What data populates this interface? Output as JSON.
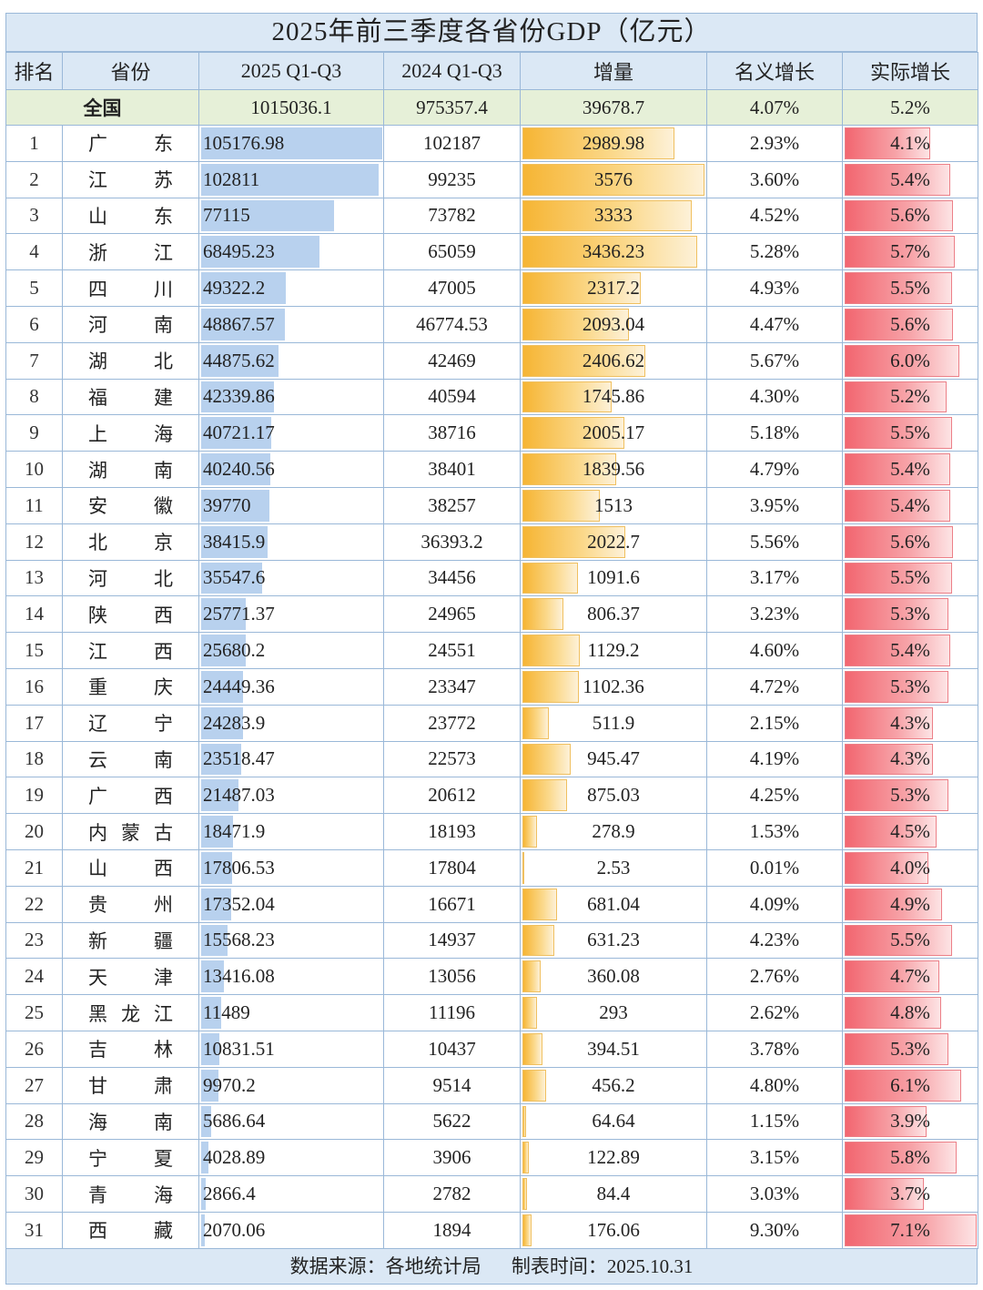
{
  "title": "2025年前三季度各省份GDP（亿元）",
  "columns": [
    "排名",
    "省份",
    "2025 Q1-Q3",
    "2024 Q1-Q3",
    "增量",
    "名义增长",
    "实际增长"
  ],
  "national": {
    "name": "全国",
    "gdp2025": "1015036.1",
    "gdp2024": "975357.4",
    "increase": "39678.7",
    "nominal": "4.07%",
    "real": "5.2%"
  },
  "rows": [
    {
      "rank": "1",
      "name": "广东",
      "gdp2025": "105176.98",
      "gdp2024": "102187",
      "increase": "2989.98",
      "nominal": "2.93%",
      "real": "4.1%"
    },
    {
      "rank": "2",
      "name": "江苏",
      "gdp2025": "102811",
      "gdp2024": "99235",
      "increase": "3576",
      "nominal": "3.60%",
      "real": "5.4%"
    },
    {
      "rank": "3",
      "name": "山东",
      "gdp2025": "77115",
      "gdp2024": "73782",
      "increase": "3333",
      "nominal": "4.52%",
      "real": "5.6%"
    },
    {
      "rank": "4",
      "name": "浙江",
      "gdp2025": "68495.23",
      "gdp2024": "65059",
      "increase": "3436.23",
      "nominal": "5.28%",
      "real": "5.7%"
    },
    {
      "rank": "5",
      "name": "四川",
      "gdp2025": "49322.2",
      "gdp2024": "47005",
      "increase": "2317.2",
      "nominal": "4.93%",
      "real": "5.5%"
    },
    {
      "rank": "6",
      "name": "河南",
      "gdp2025": "48867.57",
      "gdp2024": "46774.53",
      "increase": "2093.04",
      "nominal": "4.47%",
      "real": "5.6%"
    },
    {
      "rank": "7",
      "name": "湖北",
      "gdp2025": "44875.62",
      "gdp2024": "42469",
      "increase": "2406.62",
      "nominal": "5.67%",
      "real": "6.0%"
    },
    {
      "rank": "8",
      "name": "福建",
      "gdp2025": "42339.86",
      "gdp2024": "40594",
      "increase": "1745.86",
      "nominal": "4.30%",
      "real": "5.2%"
    },
    {
      "rank": "9",
      "name": "上海",
      "gdp2025": "40721.17",
      "gdp2024": "38716",
      "increase": "2005.17",
      "nominal": "5.18%",
      "real": "5.5%"
    },
    {
      "rank": "10",
      "name": "湖南",
      "gdp2025": "40240.56",
      "gdp2024": "38401",
      "increase": "1839.56",
      "nominal": "4.79%",
      "real": "5.4%"
    },
    {
      "rank": "11",
      "name": "安徽",
      "gdp2025": "39770",
      "gdp2024": "38257",
      "increase": "1513",
      "nominal": "3.95%",
      "real": "5.4%"
    },
    {
      "rank": "12",
      "name": "北京",
      "gdp2025": "38415.9",
      "gdp2024": "36393.2",
      "increase": "2022.7",
      "nominal": "5.56%",
      "real": "5.6%"
    },
    {
      "rank": "13",
      "name": "河北",
      "gdp2025": "35547.6",
      "gdp2024": "34456",
      "increase": "1091.6",
      "nominal": "3.17%",
      "real": "5.5%"
    },
    {
      "rank": "14",
      "name": "陕西",
      "gdp2025": "25771.37",
      "gdp2024": "24965",
      "increase": "806.37",
      "nominal": "3.23%",
      "real": "5.3%"
    },
    {
      "rank": "15",
      "name": "江西",
      "gdp2025": "25680.2",
      "gdp2024": "24551",
      "increase": "1129.2",
      "nominal": "4.60%",
      "real": "5.4%"
    },
    {
      "rank": "16",
      "name": "重庆",
      "gdp2025": "24449.36",
      "gdp2024": "23347",
      "increase": "1102.36",
      "nominal": "4.72%",
      "real": "5.3%"
    },
    {
      "rank": "17",
      "name": "辽宁",
      "gdp2025": "24283.9",
      "gdp2024": "23772",
      "increase": "511.9",
      "nominal": "2.15%",
      "real": "4.3%"
    },
    {
      "rank": "18",
      "name": "云南",
      "gdp2025": "23518.47",
      "gdp2024": "22573",
      "increase": "945.47",
      "nominal": "4.19%",
      "real": "4.3%"
    },
    {
      "rank": "19",
      "name": "广西",
      "gdp2025": "21487.03",
      "gdp2024": "20612",
      "increase": "875.03",
      "nominal": "4.25%",
      "real": "5.3%"
    },
    {
      "rank": "20",
      "name": "内蒙古",
      "gdp2025": "18471.9",
      "gdp2024": "18193",
      "increase": "278.9",
      "nominal": "1.53%",
      "real": "4.5%"
    },
    {
      "rank": "21",
      "name": "山西",
      "gdp2025": "17806.53",
      "gdp2024": "17804",
      "increase": "2.53",
      "nominal": "0.01%",
      "real": "4.0%"
    },
    {
      "rank": "22",
      "name": "贵州",
      "gdp2025": "17352.04",
      "gdp2024": "16671",
      "increase": "681.04",
      "nominal": "4.09%",
      "real": "4.9%"
    },
    {
      "rank": "23",
      "name": "新疆",
      "gdp2025": "15568.23",
      "gdp2024": "14937",
      "increase": "631.23",
      "nominal": "4.23%",
      "real": "5.5%"
    },
    {
      "rank": "24",
      "name": "天津",
      "gdp2025": "13416.08",
      "gdp2024": "13056",
      "increase": "360.08",
      "nominal": "2.76%",
      "real": "4.7%"
    },
    {
      "rank": "25",
      "name": "黑龙江",
      "gdp2025": "11489",
      "gdp2024": "11196",
      "increase": "293",
      "nominal": "2.62%",
      "real": "4.8%"
    },
    {
      "rank": "26",
      "name": "吉林",
      "gdp2025": "10831.51",
      "gdp2024": "10437",
      "increase": "394.51",
      "nominal": "3.78%",
      "real": "5.3%"
    },
    {
      "rank": "27",
      "name": "甘肃",
      "gdp2025": "9970.2",
      "gdp2024": "9514",
      "increase": "456.2",
      "nominal": "4.80%",
      "real": "6.1%"
    },
    {
      "rank": "28",
      "name": "海南",
      "gdp2025": "5686.64",
      "gdp2024": "5622",
      "increase": "64.64",
      "nominal": "1.15%",
      "real": "3.9%"
    },
    {
      "rank": "29",
      "name": "宁夏",
      "gdp2025": "4028.89",
      "gdp2024": "3906",
      "increase": "122.89",
      "nominal": "3.15%",
      "real": "5.8%"
    },
    {
      "rank": "30",
      "name": "青海",
      "gdp2025": "2866.4",
      "gdp2024": "2782",
      "increase": "84.4",
      "nominal": "3.03%",
      "real": "3.7%"
    },
    {
      "rank": "31",
      "name": "西藏",
      "gdp2025": "2070.06",
      "gdp2024": "1894",
      "increase": "176.06",
      "nominal": "9.30%",
      "real": "7.1%"
    }
  ],
  "footer": {
    "source": "数据来源：各地统计局",
    "date": "制表时间：2025.10.31"
  },
  "colors": {
    "header_bg": "#dbe8f5",
    "national_bg": "#e6f0d8",
    "gdp_bar": "#b8d1ee",
    "increase_bar": "#f6b534",
    "real_bar": "#f26670"
  }
}
